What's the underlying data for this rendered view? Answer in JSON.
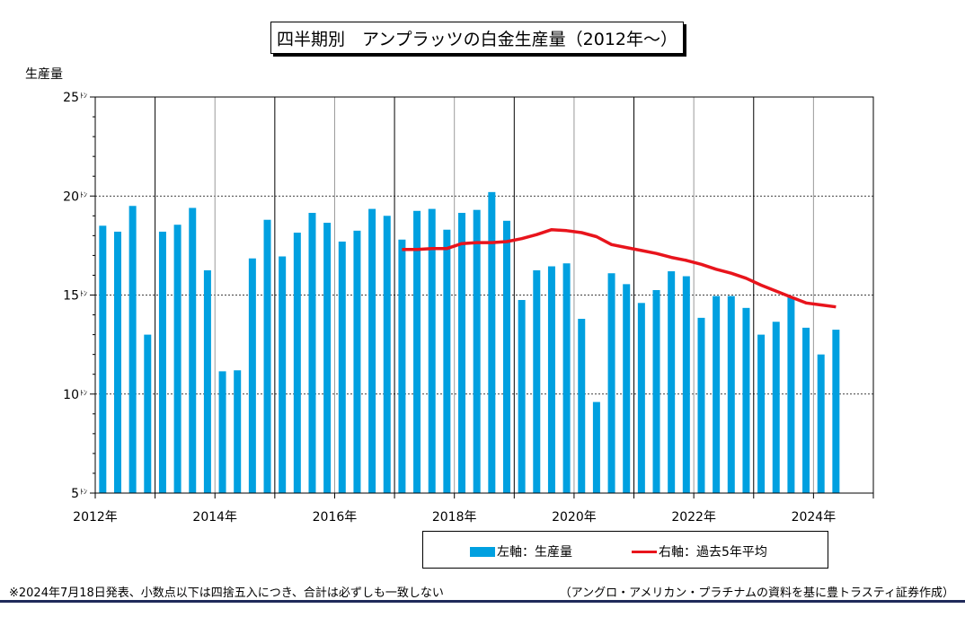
{
  "header": {
    "title": "四半期別　アンプラッツの白金生産量（2012年～）",
    "y_axis_label": "生産量"
  },
  "legend": {
    "bar_label": "左軸：生産量",
    "line_label": "右軸：過去5年平均"
  },
  "footer": {
    "note": "※2024年7月18日発表、小数点以下は四捨五入につき、合計は必ずしも一致しない",
    "source": "（アングロ・アメリカン・プラチナムの資料を基に豊トラスティ証券作成）"
  },
  "colors": {
    "bar": "#00A0E0",
    "line": "#E8141C",
    "footer_rule": "#1F2A5A"
  },
  "chart_data": {
    "type": "bar",
    "y_unit": "ﾄﾝ",
    "ylim": [
      5,
      25
    ],
    "y_ticks": [
      5,
      10,
      15,
      20,
      25
    ],
    "y_tick_labels": [
      "5",
      "10",
      "15",
      "20",
      "25"
    ],
    "x_tick_labels": [
      "2012年",
      "2014年",
      "2016年",
      "2018年",
      "2020年",
      "2022年",
      "2024年"
    ],
    "grid": true,
    "legend_position": "bottom",
    "series": [
      {
        "name": "左軸：生産量",
        "kind": "bar",
        "values": [
          18.5,
          18.2,
          19.5,
          13.0,
          18.2,
          18.55,
          19.4,
          16.25,
          11.15,
          11.2,
          16.85,
          18.8,
          16.95,
          18.15,
          19.15,
          18.65,
          17.7,
          18.25,
          19.35,
          19.0,
          17.8,
          19.25,
          19.35,
          18.3,
          19.15,
          19.3,
          20.2,
          18.75,
          14.75,
          16.25,
          16.45,
          16.6,
          13.8,
          9.6,
          16.1,
          15.55,
          14.6,
          15.25,
          16.2,
          15.95,
          13.85,
          14.95,
          14.95,
          14.35,
          13.0,
          13.65,
          14.9,
          13.35,
          12.0,
          13.25
        ]
      },
      {
        "name": "右軸：過去5年平均",
        "kind": "line",
        "start_index": 20,
        "values": [
          17.3,
          17.3,
          17.35,
          17.35,
          17.6,
          17.65,
          17.65,
          17.7,
          17.85,
          18.05,
          18.3,
          18.25,
          18.15,
          17.95,
          17.55,
          17.4,
          17.25,
          17.1,
          16.9,
          16.75,
          16.55,
          16.3,
          16.1,
          15.85,
          15.5,
          15.2,
          14.9,
          14.6,
          14.5,
          14.4
        ]
      }
    ]
  }
}
